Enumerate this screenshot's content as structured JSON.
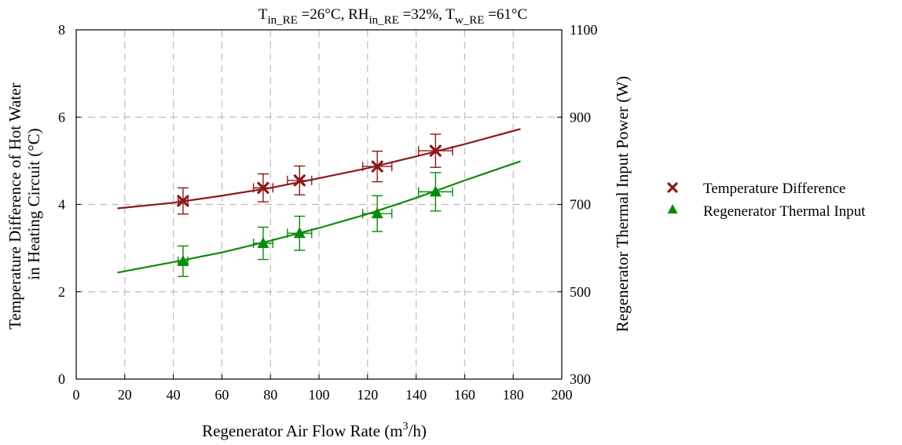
{
  "chart_data": {
    "type": "scatter",
    "title": {
      "parts": [
        {
          "text": "T"
        },
        {
          "text": "in_RE",
          "sub": true
        },
        {
          "text": " =26°C, RH"
        },
        {
          "text": "in_RE",
          "sub": true
        },
        {
          "text": " =32%,  T"
        },
        {
          "text": "w_RE",
          "sub": true
        },
        {
          "text": " =61°C"
        }
      ]
    },
    "xlabel": {
      "before": "Regenerator Air Flow Rate (m",
      "sup": "3",
      "after": "/h)"
    },
    "ylabel_left": [
      "Temperature Difference of Hot Water",
      "in Heating Circuit (°C)"
    ],
    "ylabel_right": "Regenerator Thermal Input Power (W)",
    "xlim": [
      0,
      200
    ],
    "ylim_left": [
      0,
      8
    ],
    "ylim_right": [
      300,
      1100
    ],
    "x_ticks": [
      0,
      20,
      40,
      60,
      80,
      100,
      120,
      140,
      160,
      180,
      200
    ],
    "y_left_ticks": [
      0,
      2,
      4,
      6,
      8
    ],
    "y_right_ticks": [
      300,
      500,
      700,
      900,
      1100
    ],
    "grid": true,
    "legend_position": "right, outside plot",
    "series": [
      {
        "name": "Temperature Difference",
        "marker": "x",
        "color": "#8b1a1a",
        "axis": "left",
        "points": [
          {
            "x": 44,
            "y": 4.08,
            "yerr": 0.3,
            "xerr": 2
          },
          {
            "x": 77,
            "y": 4.38,
            "yerr": 0.32,
            "xerr": 4
          },
          {
            "x": 92,
            "y": 4.55,
            "yerr": 0.33,
            "xerr": 5
          },
          {
            "x": 124,
            "y": 4.87,
            "yerr": 0.35,
            "xerr": 6
          },
          {
            "x": 148,
            "y": 5.23,
            "yerr": 0.38,
            "xerr": 7
          }
        ],
        "fit": [
          {
            "x": 17,
            "y": 3.91
          },
          {
            "x": 40,
            "y": 4.04
          },
          {
            "x": 60,
            "y": 4.2
          },
          {
            "x": 80,
            "y": 4.38
          },
          {
            "x": 100,
            "y": 4.6
          },
          {
            "x": 120,
            "y": 4.83
          },
          {
            "x": 140,
            "y": 5.1
          },
          {
            "x": 160,
            "y": 5.38
          },
          {
            "x": 183,
            "y": 5.73
          }
        ]
      },
      {
        "name": "Regenerator Thermal Input",
        "marker": "triangle",
        "color": "#0a8a0a",
        "axis": "right",
        "points": [
          {
            "x": 44,
            "y": 570,
            "yerr": 35,
            "xerr": 2
          },
          {
            "x": 77,
            "y": 611,
            "yerr": 37,
            "xerr": 4
          },
          {
            "x": 92,
            "y": 634,
            "yerr": 39,
            "xerr": 5
          },
          {
            "x": 124,
            "y": 679,
            "yerr": 41,
            "xerr": 6
          },
          {
            "x": 148,
            "y": 729,
            "yerr": 44,
            "xerr": 7
          }
        ],
        "fit": [
          {
            "x": 17,
            "y": 544
          },
          {
            "x": 40,
            "y": 568
          },
          {
            "x": 60,
            "y": 590
          },
          {
            "x": 80,
            "y": 617
          },
          {
            "x": 100,
            "y": 646
          },
          {
            "x": 120,
            "y": 678
          },
          {
            "x": 140,
            "y": 715
          },
          {
            "x": 160,
            "y": 755
          },
          {
            "x": 183,
            "y": 799
          }
        ]
      }
    ]
  }
}
